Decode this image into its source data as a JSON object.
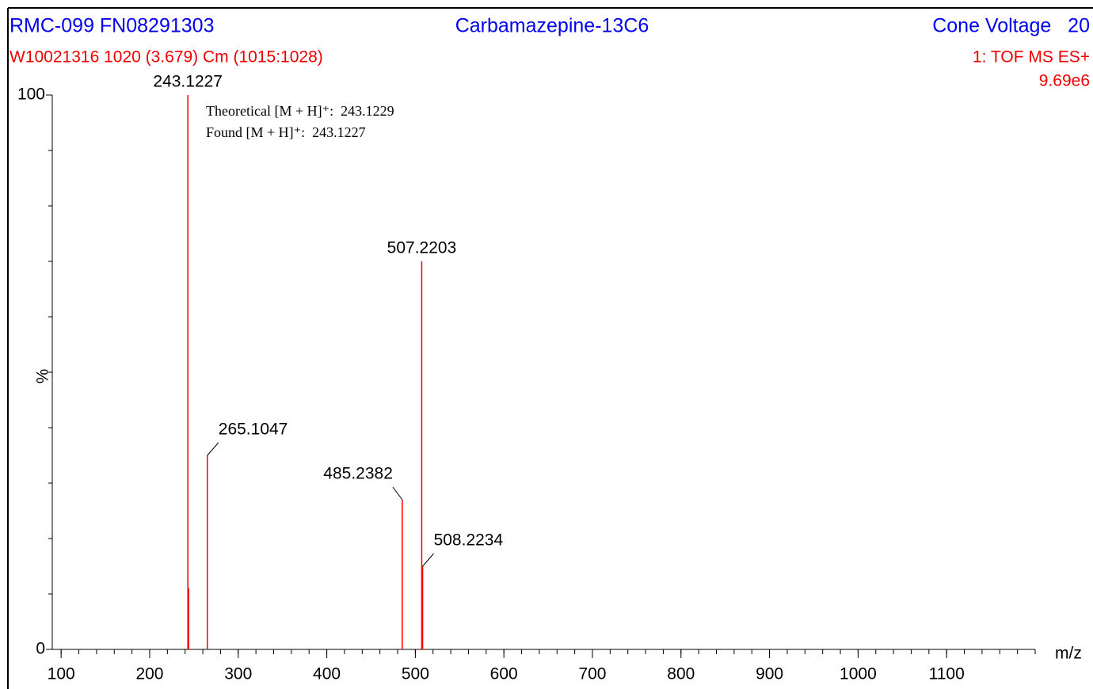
{
  "chart_data": {
    "type": "spectrum",
    "header_left": "RMC-099 FN08291303",
    "title": "Carbamazepine-13C6",
    "header_right": "Cone Voltage   20",
    "subheader_left": "W10021316 1020 (3.679) Cm (1015:1028)",
    "subheader_right": "1: TOF MS ES+",
    "scale_label": "9.69e6",
    "xlabel": "m/z",
    "ylabel": "%",
    "annotations": [
      "Theoretical [M + H]⁺:  243.1229",
      "Found [M + H]⁺:  243.1227"
    ],
    "color": "#ff0000",
    "peaks": {
      "x": [
        243.1227,
        265.1047,
        485.2382,
        507.2203,
        508.2234
      ],
      "values": [
        100,
        35,
        27,
        70,
        15
      ]
    },
    "minor_peaks": {
      "x": [
        244.1
      ],
      "values": [
        11
      ]
    },
    "xlim": [
      90,
      1200
    ],
    "ylim": [
      0,
      100
    ],
    "xticks": [
      100,
      200,
      300,
      400,
      500,
      600,
      700,
      800,
      900,
      1000,
      1100
    ],
    "xminor_ticks": [
      100,
      120,
      140,
      160,
      180,
      200,
      220,
      240,
      260,
      280,
      300,
      320,
      340,
      360,
      380,
      400,
      420,
      440,
      460,
      480,
      500,
      520,
      540,
      560,
      580,
      600,
      620,
      640,
      660,
      680,
      700,
      720,
      740,
      760,
      780,
      800,
      820,
      840,
      860,
      880,
      900,
      920,
      940,
      960,
      980,
      1000,
      1020,
      1040,
      1060,
      1080,
      1100,
      1120,
      1140,
      1160,
      1180,
      1200
    ],
    "yticks": [
      0,
      100
    ],
    "yminor_ticks": [
      10,
      20,
      30,
      40,
      50,
      60,
      70,
      80,
      90
    ]
  }
}
